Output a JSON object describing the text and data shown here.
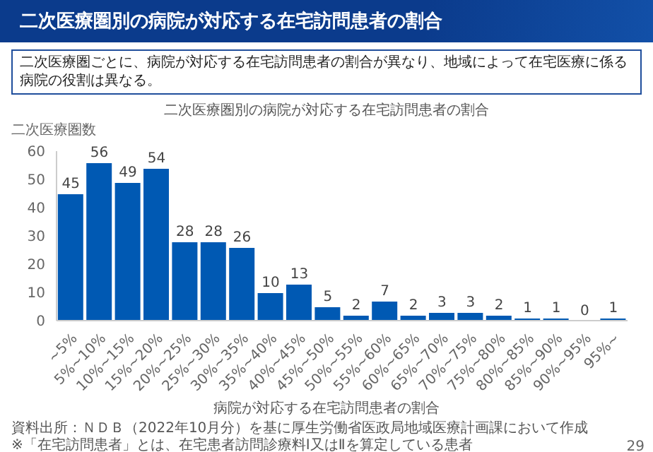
{
  "chart_data": {
    "type": "bar",
    "title": "二次医療圏別の病院が対応する在宅訪問患者の割合",
    "subtitle": "二次医療圏ごとに、病院が対応する在宅訪問患者の割合が異なり、地域によって在宅医療に係る病院の役割は異なる。",
    "xlabel": "病院が対応する在宅訪問患者の割合",
    "ylabel": "二次医療圏数",
    "categories": [
      "~5%",
      "5%~10%",
      "10%~15%",
      "15%~20%",
      "20%~25%",
      "25%~30%",
      "30%~35%",
      "35%~40%",
      "40%~45%",
      "45%~50%",
      "50%~55%",
      "55%~60%",
      "60%~65%",
      "65%~70%",
      "70%~75%",
      "75%~80%",
      "80%~85%",
      "85%~90%",
      "90%~95%",
      "95%~"
    ],
    "values": [
      45,
      56,
      49,
      54,
      28,
      28,
      26,
      10,
      13,
      5,
      2,
      7,
      2,
      3,
      3,
      2,
      1,
      1,
      0,
      1
    ],
    "color": "#0059b3",
    "ylim": [
      0,
      60
    ],
    "yticks": [
      0,
      10,
      20,
      30,
      40,
      50,
      60
    ],
    "grid": false,
    "legend": false,
    "data_labels": true,
    "annotations": [
      "資料出所：ＮＤＢ（2022年10月分）を基に厚生労働省医政局地域医療計画課において作成",
      "※「在宅訪問患者」とは、在宅患者訪問診療料Ⅰ又はⅡを算定している患者",
      "29"
    ]
  }
}
